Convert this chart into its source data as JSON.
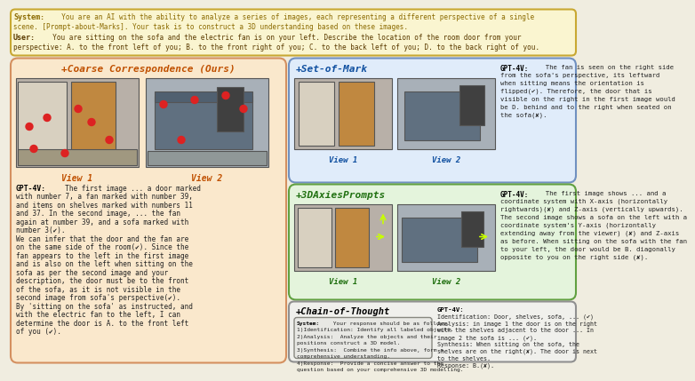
{
  "bg_color": "#f0ede0",
  "header_bg": "#faf5d0",
  "header_border": "#c8a832",
  "system_label": "System:",
  "system_text1": "  You are an AI with the ability to analyze a series of images, each representing a different perspective of a single",
  "system_text2": "scene. [Prompt-about-Marks]. Your task is to construct a 3D understanding based on these images.",
  "user_label": "User:",
  "user_text1": "  You are sitting on the sofa and the electric fan is on your left. Describe the location of the room door from your",
  "user_text2": "perspective: A. to the front left of you; B. to the front right of you; C. to the back left of you; D. to the back right of you.",
  "system_color": "#8b6a00",
  "user_color": "#5a3a00",
  "panel1_title": "+Coarse Correspondence (Ours)",
  "panel1_bg": "#fae8cc",
  "panel1_border": "#d49060",
  "panel1_title_color": "#c05000",
  "panel1_gpt_label": "GPT-4V:",
  "panel1_text": "  The first image ... a door marked\nwith number 7, a fan marked with number 39,\nand items on shelves marked with numbers 11\nand 37. In the second image, ... the fan\nagain at number 39, and a sofa marked with\nnumber 3(✔).\nWe can infer that the door and the fan are\non the same side of the room(✔). Since the\nfan appears to the left in the first image\nand is also on the left when sitting on the\nsofa as per the second image and your\ndescription, the door must be to the front\nof the sofa, as it is not visible in the\nsecond image from sofa's perspective(✔).\nBy 'sitting on the sofa' as instructed, and\nwith the electric fan to the left, I can\ndetermine the door is A. to the front left\nof you (✔).",
  "panel2_title": "+Set-of-Mark",
  "panel2_bg": "#e0ecfa",
  "panel2_border": "#7090c0",
  "panel2_title_color": "#1050a0",
  "panel2_gpt_label": "GPT-4V:",
  "panel2_text": "  The fan is seen on the right side\nfrom the sofa's perspective, its leftward\nwhen sitting means the orientation is\nflipped(✔). Therefore, the door that is\nvisible on the right in the first image would\nbe D. behind and to the right when seated on\nthe sofa(✘).",
  "panel3_title": "+3DAxiesPrompts",
  "panel3_bg": "#e4f4dc",
  "panel3_border": "#60a040",
  "panel3_title_color": "#207010",
  "panel3_gpt_label": "GPT-4V:",
  "panel3_text": "  The first image shows ... and a\ncoordinate system with X-axis (horizontally\nrightwards)(✘) and Z-axis (vertically upwards).\nThe second image shows a sofa on the left with a\ncoordinate system's Y-axis (horizontally\nextending away from the viewer) (✘) and Z-axis\nas before. When sitting on the sofa with the fan\nto your left, the door would be B. diagonally\nopposite to you on the right side (✘).",
  "panel4_title": "+Chain-of-Thought",
  "panel4_bg": "#f0f0ec",
  "panel4_border": "#909090",
  "panel4_title_color": "#000000",
  "panel4_sys_label": "System:",
  "panel4_sys_text": " Your response should be as follows.\n1)Identification: Identify all labeled objects.\n2)Analysis:  Analyze the objects and their\npositions construct a 3D model.\n3)Synthesis:  Combine the info above, form a\ncomprehensive understanding.\n4)Response:  Provide a concise answer to the\nquestion based on your comprehensive 3D modelling.",
  "panel4_gpt_label": "GPT-4V:",
  "panel4_gpt_text": "\nIdentification: Door, shelves, sofa, ... (✔)\nAnalysis: in image 1 the door is on the right\nwith the shelves adjacent to the door ... In\nimage 2 the sofa is ... (✔).\nSynthesis: When sitting on the sofa, the\nshelves are on the right(✘). The door is next\nto the shelves.\nResponse: B.(✘).",
  "view1_label": "View 1",
  "view2_label": "View 2",
  "img1_color": "#b8b0a8",
  "img1_door_color": "#c08840",
  "img1_shelf_color": "#d8d0c0",
  "img2_color": "#a8b0b8",
  "img2_sofa_color": "#607080",
  "dot_color": "#dd2222",
  "sys_box_bg": "#e8e8e4",
  "sys_box_border": "#888880"
}
